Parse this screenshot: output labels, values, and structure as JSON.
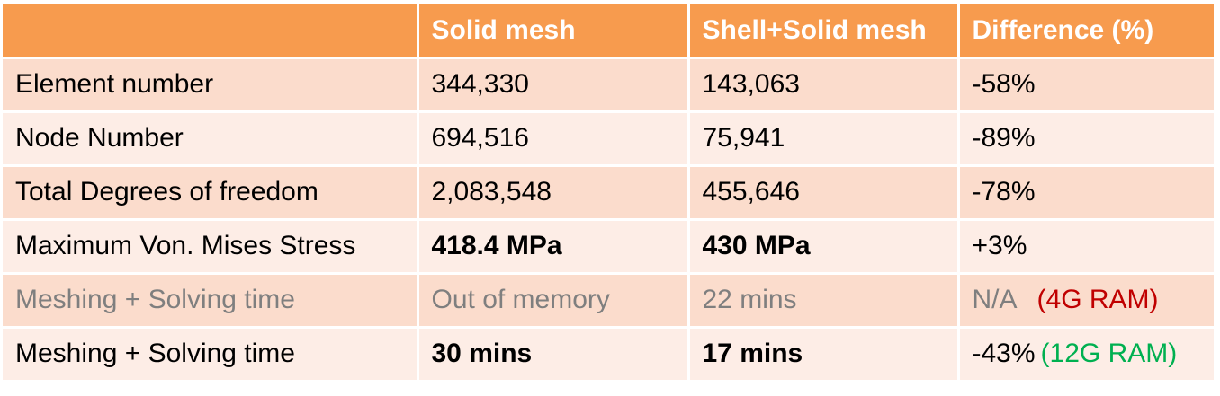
{
  "table": {
    "headers": [
      "",
      "Solid mesh",
      "Shell+Solid mesh",
      "Difference (%)"
    ],
    "rows": [
      {
        "label": "Element number",
        "solid": "344,330",
        "shell": "143,063",
        "diff": "-58%",
        "note": ""
      },
      {
        "label": "Node Number",
        "solid": "694,516",
        "shell": "75,941",
        "diff": "-89%",
        "note": ""
      },
      {
        "label": "Total Degrees of freedom",
        "solid": "2,083,548",
        "shell": "455,646",
        "diff": "-78%",
        "note": ""
      },
      {
        "label": "Maximum Von. Mises Stress",
        "solid": "418.4 MPa",
        "shell": "430 MPa",
        "diff": "+3%",
        "note": ""
      },
      {
        "label": "Meshing + Solving time",
        "solid": "Out of memory",
        "shell": "22 mins",
        "diff": "N/A",
        "note": "(4G RAM)"
      },
      {
        "label": "Meshing + Solving time",
        "solid": "30 mins",
        "shell": "17 mins",
        "diff": "-43%",
        "note": "(12G RAM)"
      }
    ]
  },
  "colors": {
    "header_bg": "#F79B4E",
    "row_dark": "#FBDCCC",
    "row_light": "#FDEDE6",
    "note_red": "#C00000",
    "note_green": "#00B050",
    "muted_text": "#7F7F7F"
  }
}
